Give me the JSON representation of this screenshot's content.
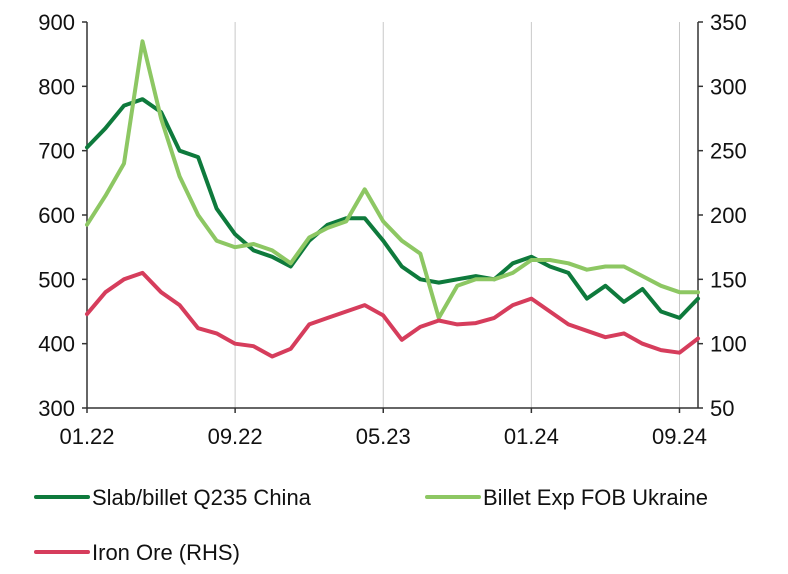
{
  "chart_data": {
    "type": "line",
    "x": [
      "2022-01",
      "2022-02",
      "2022-03",
      "2022-04",
      "2022-05",
      "2022-06",
      "2022-07",
      "2022-08",
      "2022-09",
      "2022-10",
      "2022-11",
      "2022-12",
      "2023-01",
      "2023-02",
      "2023-03",
      "2023-04",
      "2023-05",
      "2023-06",
      "2023-07",
      "2023-08",
      "2023-09",
      "2023-10",
      "2023-11",
      "2023-12",
      "2024-01",
      "2024-02",
      "2024-03",
      "2024-04",
      "2024-05",
      "2024-06",
      "2024-07",
      "2024-08",
      "2024-09",
      "2024-10"
    ],
    "xticks": [
      "01.22",
      "09.22",
      "05.23",
      "01.24",
      "09.24"
    ],
    "yticks_left": [
      300,
      400,
      500,
      600,
      700,
      800,
      900
    ],
    "yticks_right": [
      50,
      100,
      150,
      200,
      250,
      300,
      350
    ],
    "ylim_left": [
      300,
      900
    ],
    "ylim_right": [
      50,
      350
    ],
    "grid": "vertical",
    "legend_position": "bottom",
    "series": [
      {
        "name": "Slab/billet Q235 China",
        "axis": "left",
        "color": "#0E7A3C",
        "values": [
          705,
          735,
          770,
          780,
          760,
          700,
          690,
          610,
          570,
          545,
          535,
          520,
          560,
          585,
          595,
          595,
          560,
          520,
          500,
          495,
          500,
          505,
          500,
          525,
          535,
          520,
          510,
          470,
          490,
          465,
          485,
          450,
          440,
          470
        ]
      },
      {
        "name": "Billet Exp FOB Ukraine",
        "axis": "left",
        "color": "#8DC763",
        "values": [
          585,
          630,
          680,
          870,
          750,
          660,
          600,
          560,
          550,
          555,
          545,
          525,
          565,
          580,
          590,
          640,
          590,
          560,
          540,
          440,
          490,
          500,
          500,
          510,
          530,
          530,
          525,
          515,
          520,
          520,
          505,
          490,
          480,
          480
        ]
      },
      {
        "name": "Iron Ore (RHS)",
        "axis": "right",
        "color": "#D63D5C",
        "values": [
          123,
          140,
          150,
          155,
          140,
          130,
          112,
          108,
          100,
          98,
          90,
          96,
          115,
          120,
          125,
          130,
          122,
          103,
          113,
          118,
          115,
          116,
          120,
          130,
          135,
          125,
          115,
          110,
          105,
          108,
          100,
          95,
          93,
          104
        ]
      }
    ]
  }
}
